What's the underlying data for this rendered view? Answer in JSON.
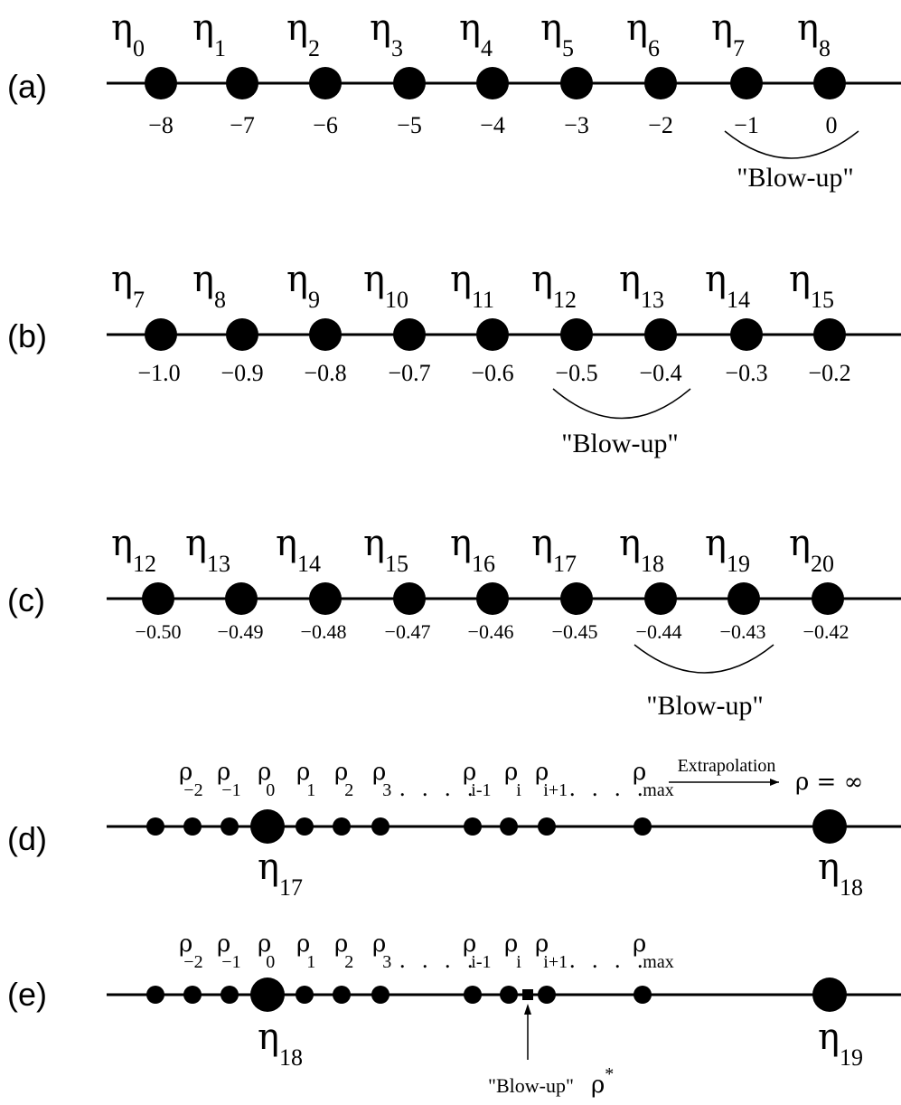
{
  "panels": [
    {
      "label": "(a)",
      "eta_names": [
        "η",
        "η",
        "η",
        "η",
        "η",
        "η",
        "η",
        "η",
        "η"
      ],
      "eta_subs": [
        "0",
        "1",
        "2",
        "3",
        "4",
        "5",
        "6",
        "7",
        "8"
      ],
      "ticks": [
        "−8",
        "−7",
        "−6",
        "−5",
        "−4",
        "−3",
        "−2",
        "−1",
        "0"
      ],
      "blowup": "\"Blow-up\""
    },
    {
      "label": "(b)",
      "eta_names": [
        "η",
        "η",
        "η",
        "η",
        "η",
        "η",
        "η",
        "η",
        "η"
      ],
      "eta_subs": [
        "7",
        "8",
        "9",
        "10",
        "11",
        "12",
        "13",
        "14",
        "15"
      ],
      "ticks": [
        "−1.0",
        "−0.9",
        "−0.8",
        "−0.7",
        "−0.6",
        "−0.5",
        "−0.4",
        "−0.3",
        "−0.2"
      ],
      "blowup": "\"Blow-up\""
    },
    {
      "label": "(c)",
      "eta_names": [
        "η",
        "η",
        "η",
        "η",
        "η",
        "η",
        "η",
        "η",
        "η"
      ],
      "eta_subs": [
        "12",
        "13",
        "14",
        "15",
        "16",
        "17",
        "18",
        "19",
        "20"
      ],
      "ticks": [
        "−0.50",
        "−0.49",
        "−0.48",
        "−0.47",
        "−0.46",
        "−0.45",
        "−0.44",
        "−0.43",
        "−0.42"
      ],
      "blowup": "\"Blow-up\""
    },
    {
      "label": "(d)",
      "rho_symbol": "ρ",
      "rho_subs": [
        "−2",
        "−1",
        "0",
        "1",
        "2",
        "3",
        "i-1",
        "i",
        "i+1",
        "max"
      ],
      "dots": ". . . .",
      "extrapolation": "Extrapolation",
      "rho_infinity": "ρ = ∞",
      "eta_left": "η",
      "eta_left_sub": "17",
      "eta_right": "η",
      "eta_right_sub": "18"
    },
    {
      "label": "(e)",
      "rho_symbol": "ρ",
      "rho_subs": [
        "−2",
        "−1",
        "0",
        "1",
        "2",
        "3",
        "i-1",
        "i",
        "i+1",
        "max"
      ],
      "dots": ". . . .",
      "eta_left": "η",
      "eta_left_sub": "18",
      "eta_right": "η",
      "eta_right_sub": "19",
      "blowup": "\"Blow-up\"",
      "rho_star": "ρ",
      "rho_star_sup": "*"
    }
  ]
}
